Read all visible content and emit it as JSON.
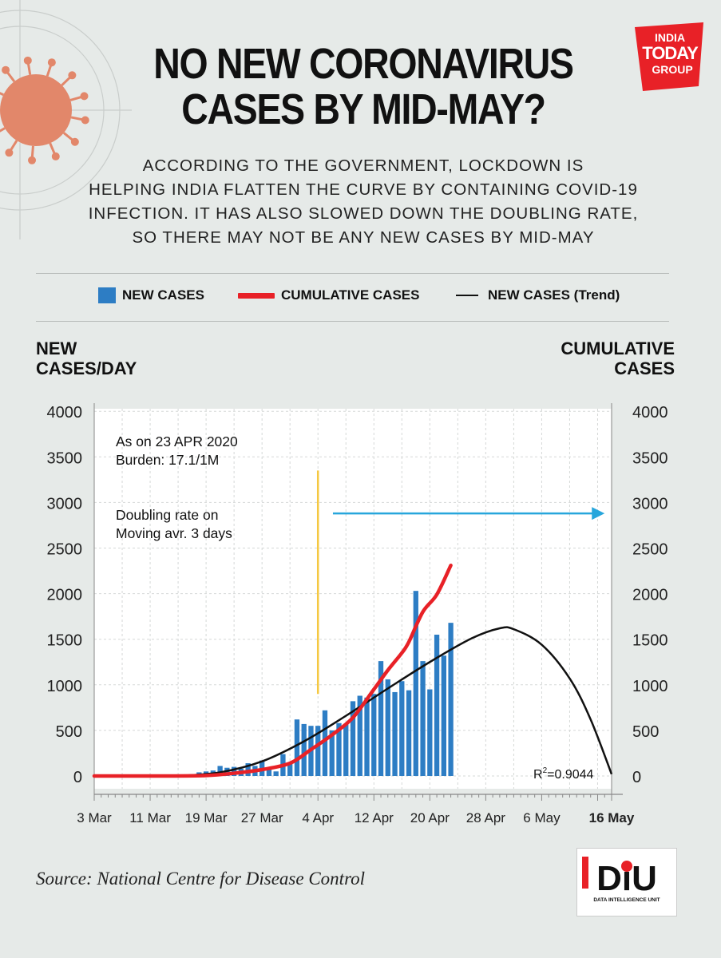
{
  "header": {
    "title_line1": "NO NEW CORONAVIRUS",
    "title_line2": "CASES BY MID-MAY?",
    "subtitle_lines": [
      "ACCORDING TO THE GOVERNMENT, LOCKDOWN IS",
      "HELPING INDIA FLATTEN THE CURVE BY CONTAINING COVID-19",
      "INFECTION. IT HAS ALSO SLOWED DOWN THE DOUBLING RATE,",
      "SO THERE MAY NOT BE ANY NEW CASES BY MID-MAY"
    ]
  },
  "logo": {
    "line1": "INDIA",
    "line2": "TODAY",
    "line3": "GROUP",
    "color": "#e82127"
  },
  "legend": {
    "new_cases": "NEW CASES",
    "cumulative": "CUMULATIVE CASES",
    "trend": "NEW CASES (Trend)"
  },
  "axes": {
    "left_title_1": "NEW",
    "left_title_2": "CASES/DAY",
    "right_title_1": "CUMULATIVE",
    "right_title_2": "CASES"
  },
  "annotations": {
    "as_on_1": "As on 23 APR 2020",
    "as_on_2": "Burden: 17.1/1M",
    "doubling_1": "Doubling rate on",
    "doubling_2": "Moving avr. 3 days",
    "r2_label": "R",
    "r2_sup": "2",
    "r2_value": "=0.9044"
  },
  "source": "Source: National Centre for Disease Control",
  "diu": {
    "mark": "DiU",
    "caption": "DATA INTELLIGENCE UNIT"
  },
  "colors": {
    "bars": "#2d7dc4",
    "cumulative": "#e82127",
    "trend": "#111111",
    "vline": "#f5c842",
    "arrow": "#27a6dc",
    "virus": "#e2876a"
  },
  "chart_data": {
    "type": "bar",
    "title": "NO NEW CORONAVIRUS CASES BY MID-MAY?",
    "xlabel": "",
    "ylabel": "NEW CASES/DAY",
    "y2label": "CUMULATIVE CASES",
    "ylim": [
      0,
      4000
    ],
    "yticks": [
      0,
      500,
      1000,
      1500,
      2000,
      2500,
      3000,
      3500,
      4000
    ],
    "xlim": [
      "2020-03-03",
      "2020-05-16"
    ],
    "xticks": [
      {
        "date": "2020-03-03",
        "label": "3 Mar",
        "bold": false
      },
      {
        "date": "2020-03-11",
        "label": "11 Mar",
        "bold": false
      },
      {
        "date": "2020-03-19",
        "label": "19 Mar",
        "bold": false
      },
      {
        "date": "2020-03-27",
        "label": "27 Mar",
        "bold": false
      },
      {
        "date": "2020-04-04",
        "label": "4 Apr",
        "bold": false
      },
      {
        "date": "2020-04-12",
        "label": "12 Apr",
        "bold": false
      },
      {
        "date": "2020-04-20",
        "label": "20 Apr",
        "bold": false
      },
      {
        "date": "2020-04-28",
        "label": "28 Apr",
        "bold": false
      },
      {
        "date": "2020-05-06",
        "label": "6 May",
        "bold": false
      },
      {
        "date": "2020-05-16",
        "label": "16 May",
        "bold": true
      }
    ],
    "grid": true,
    "legend_position": "top",
    "series": [
      {
        "name": "NEW CASES",
        "kind": "bar",
        "points": [
          {
            "date": "2020-03-18",
            "value": 40
          },
          {
            "date": "2020-03-19",
            "value": 50
          },
          {
            "date": "2020-03-20",
            "value": 60
          },
          {
            "date": "2020-03-21",
            "value": 110
          },
          {
            "date": "2020-03-22",
            "value": 90
          },
          {
            "date": "2020-03-23",
            "value": 100
          },
          {
            "date": "2020-03-24",
            "value": 80
          },
          {
            "date": "2020-03-25",
            "value": 140
          },
          {
            "date": "2020-03-26",
            "value": 110
          },
          {
            "date": "2020-03-27",
            "value": 170
          },
          {
            "date": "2020-03-28",
            "value": 90
          },
          {
            "date": "2020-03-29",
            "value": 50
          },
          {
            "date": "2020-03-30",
            "value": 240
          },
          {
            "date": "2020-03-31",
            "value": 140
          },
          {
            "date": "2020-04-01",
            "value": 620
          },
          {
            "date": "2020-04-02",
            "value": 570
          },
          {
            "date": "2020-04-03",
            "value": 550
          },
          {
            "date": "2020-04-04",
            "value": 550
          },
          {
            "date": "2020-04-05",
            "value": 720
          },
          {
            "date": "2020-04-06",
            "value": 500
          },
          {
            "date": "2020-04-07",
            "value": 580
          },
          {
            "date": "2020-04-08",
            "value": 570
          },
          {
            "date": "2020-04-09",
            "value": 820
          },
          {
            "date": "2020-04-10",
            "value": 880
          },
          {
            "date": "2020-04-11",
            "value": 860
          },
          {
            "date": "2020-04-12",
            "value": 900
          },
          {
            "date": "2020-04-13",
            "value": 1260
          },
          {
            "date": "2020-04-14",
            "value": 1060
          },
          {
            "date": "2020-04-15",
            "value": 920
          },
          {
            "date": "2020-04-16",
            "value": 1040
          },
          {
            "date": "2020-04-17",
            "value": 940
          },
          {
            "date": "2020-04-18",
            "value": 2030
          },
          {
            "date": "2020-04-19",
            "value": 1260
          },
          {
            "date": "2020-04-20",
            "value": 950
          },
          {
            "date": "2020-04-21",
            "value": 1550
          },
          {
            "date": "2020-04-22",
            "value": 1320
          },
          {
            "date": "2020-04-23",
            "value": 1680
          }
        ]
      },
      {
        "name": "CUMULATIVE CASES",
        "kind": "line",
        "axis": "right",
        "points": [
          {
            "date": "2020-03-03",
            "value": 0
          },
          {
            "date": "2020-03-13",
            "value": 0
          },
          {
            "date": "2020-03-19",
            "value": 5
          },
          {
            "date": "2020-03-23",
            "value": 30
          },
          {
            "date": "2020-03-27",
            "value": 70
          },
          {
            "date": "2020-03-31",
            "value": 140
          },
          {
            "date": "2020-04-03",
            "value": 290
          },
          {
            "date": "2020-04-06",
            "value": 450
          },
          {
            "date": "2020-04-09",
            "value": 640
          },
          {
            "date": "2020-04-12",
            "value": 950
          },
          {
            "date": "2020-04-14",
            "value": 1160
          },
          {
            "date": "2020-04-16",
            "value": 1350
          },
          {
            "date": "2020-04-17",
            "value": 1470
          },
          {
            "date": "2020-04-19",
            "value": 1800
          },
          {
            "date": "2020-04-21",
            "value": 1990
          },
          {
            "date": "2020-04-23",
            "value": 2310
          }
        ]
      },
      {
        "name": "NEW CASES (Trend)",
        "kind": "line",
        "points": [
          {
            "date": "2020-03-15",
            "value": 0
          },
          {
            "date": "2020-03-21",
            "value": 40
          },
          {
            "date": "2020-03-27",
            "value": 160
          },
          {
            "date": "2020-04-02",
            "value": 380
          },
          {
            "date": "2020-04-08",
            "value": 660
          },
          {
            "date": "2020-04-14",
            "value": 960
          },
          {
            "date": "2020-04-20",
            "value": 1250
          },
          {
            "date": "2020-04-26",
            "value": 1510
          },
          {
            "date": "2020-04-30",
            "value": 1620
          },
          {
            "date": "2020-05-02",
            "value": 1610
          },
          {
            "date": "2020-05-06",
            "value": 1440
          },
          {
            "date": "2020-05-10",
            "value": 1070
          },
          {
            "date": "2020-05-13",
            "value": 620
          },
          {
            "date": "2020-05-16",
            "value": 20
          }
        ]
      }
    ],
    "reference_line": {
      "date": "2020-04-04",
      "y_from": 900,
      "y_to": 3350
    },
    "arrow": {
      "from": "2020-04-05",
      "to": "2020-05-15",
      "y": 2880
    }
  }
}
